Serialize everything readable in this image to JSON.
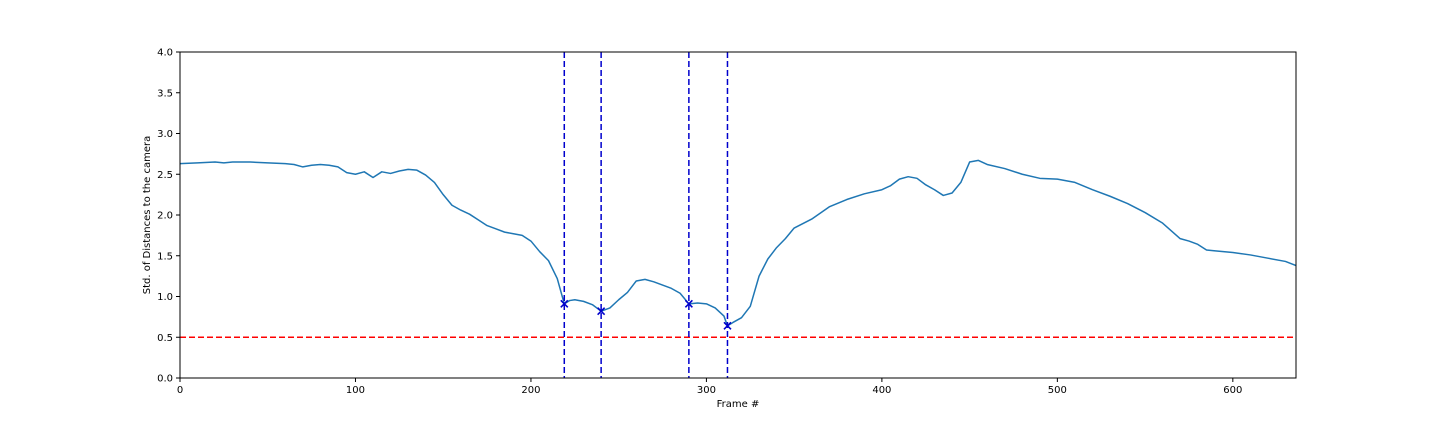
{
  "chart_data": {
    "type": "line",
    "title": "",
    "xlabel": "Frame #",
    "ylabel": "Std. of Distances to the camera",
    "xlim": [
      0,
      636
    ],
    "ylim": [
      0,
      4.0
    ],
    "x_ticks": [
      0,
      100,
      200,
      300,
      400,
      500,
      600
    ],
    "y_ticks": [
      0.0,
      0.5,
      1.0,
      1.5,
      2.0,
      2.5,
      3.0,
      3.5,
      4.0
    ],
    "x_tick_labels": [
      "0",
      "100",
      "200",
      "300",
      "400",
      "500",
      "600"
    ],
    "y_tick_labels": [
      "0.0",
      "0.5",
      "1.0",
      "1.5",
      "2.0",
      "2.5",
      "3.0",
      "3.5",
      "4.0"
    ],
    "grid": false,
    "colors": {
      "series": "#1f77b4",
      "threshold": "#ff0000",
      "markers": "#0000cc",
      "vlines": "#0000cc"
    },
    "series": [
      {
        "x": [
          0,
          10,
          20,
          25,
          30,
          40,
          50,
          60,
          65,
          70,
          75,
          80,
          85,
          90,
          95,
          100,
          105,
          110,
          115,
          120,
          125,
          130,
          135,
          140,
          145,
          150,
          155,
          160,
          165,
          170,
          175,
          180,
          185,
          190,
          195,
          200,
          205,
          210,
          215,
          219,
          222,
          225,
          230,
          235,
          240,
          245,
          250,
          255,
          260,
          265,
          270,
          275,
          280,
          285,
          290,
          295,
          300,
          305,
          310,
          312,
          315,
          320,
          325,
          330,
          335,
          340,
          345,
          350,
          360,
          370,
          380,
          390,
          400,
          405,
          410,
          415,
          420,
          425,
          430,
          435,
          440,
          445,
          450,
          455,
          460,
          470,
          480,
          490,
          500,
          510,
          520,
          530,
          540,
          550,
          560,
          570,
          575,
          580,
          585,
          590,
          600,
          610,
          620,
          630,
          636
        ],
        "y": [
          2.63,
          2.64,
          2.65,
          2.64,
          2.65,
          2.65,
          2.64,
          2.63,
          2.62,
          2.59,
          2.61,
          2.62,
          2.61,
          2.59,
          2.52,
          2.5,
          2.53,
          2.46,
          2.53,
          2.51,
          2.54,
          2.56,
          2.55,
          2.49,
          2.4,
          2.25,
          2.12,
          2.06,
          2.01,
          1.94,
          1.87,
          1.83,
          1.79,
          1.77,
          1.75,
          1.68,
          1.55,
          1.44,
          1.22,
          0.91,
          0.95,
          0.96,
          0.94,
          0.9,
          0.82,
          0.86,
          0.96,
          1.05,
          1.19,
          1.21,
          1.18,
          1.14,
          1.1,
          1.04,
          0.91,
          0.92,
          0.91,
          0.86,
          0.76,
          0.64,
          0.68,
          0.74,
          0.88,
          1.25,
          1.46,
          1.6,
          1.71,
          1.84,
          1.95,
          2.1,
          2.19,
          2.26,
          2.31,
          2.36,
          2.44,
          2.47,
          2.45,
          2.37,
          2.31,
          2.24,
          2.27,
          2.4,
          2.65,
          2.67,
          2.62,
          2.57,
          2.5,
          2.45,
          2.44,
          2.4,
          2.31,
          2.23,
          2.14,
          2.03,
          1.9,
          1.71,
          1.68,
          1.64,
          1.57,
          1.56,
          1.54,
          1.51,
          1.47,
          1.43,
          1.38
        ]
      }
    ],
    "threshold_y": 0.5,
    "vlines_x": [
      219,
      240,
      290,
      312
    ],
    "markers": [
      {
        "x": 219,
        "y": 0.91
      },
      {
        "x": 240,
        "y": 0.82
      },
      {
        "x": 290,
        "y": 0.91
      },
      {
        "x": 312,
        "y": 0.64
      }
    ]
  }
}
